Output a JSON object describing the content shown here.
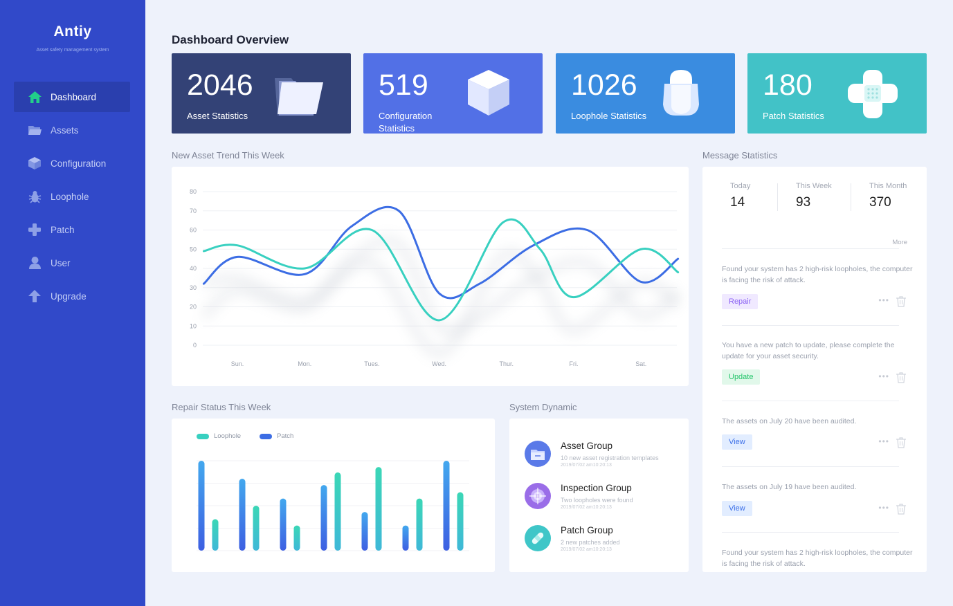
{
  "app": {
    "name": "Antiy",
    "subtitle": "Asset safety management system"
  },
  "sidebar": {
    "items": [
      {
        "label": "Dashboard",
        "icon": "home-icon",
        "active": true
      },
      {
        "label": "Assets",
        "icon": "folder-icon",
        "active": false
      },
      {
        "label": "Configuration",
        "icon": "cube-icon",
        "active": false
      },
      {
        "label": "Loophole",
        "icon": "bug-icon",
        "active": false
      },
      {
        "label": "Patch",
        "icon": "plus-icon",
        "active": false
      },
      {
        "label": "User",
        "icon": "user-icon",
        "active": false
      },
      {
        "label": "Upgrade",
        "icon": "arrow-up-icon",
        "active": false
      }
    ]
  },
  "page": {
    "title": "Dashboard Overview"
  },
  "stats": [
    {
      "value": "2046",
      "label": "Asset Statistics",
      "color": "#334276",
      "icon": "folder-icon"
    },
    {
      "value": "519",
      "label": "Configuration Statistics",
      "color": "#5270e6",
      "icon": "cube-icon"
    },
    {
      "value": "1026",
      "label": "Loophole Statistics",
      "color": "#3a8ce0",
      "icon": "shield-icon"
    },
    {
      "value": "180",
      "label": "Patch Statistics",
      "color": "#42c2c7",
      "icon": "bandage-icon"
    }
  ],
  "trend": {
    "title": "New Asset Trend This Week",
    "chart_data": {
      "type": "line",
      "categories": [
        "Sun.",
        "Mon.",
        "Tues.",
        "Wed.",
        "Thur.",
        "Fri.",
        "Sat."
      ],
      "yticks": [
        0,
        10,
        20,
        30,
        40,
        50,
        60,
        70,
        80
      ],
      "ylim": [
        0,
        80
      ],
      "grid": true,
      "series": [
        {
          "color": "#3c6de4",
          "x": [
            -0.5,
            0.0,
            1.0,
            1.7,
            2.4,
            3.0,
            3.6,
            4.4,
            5.2,
            6.0,
            6.55
          ],
          "values": [
            32,
            46,
            37,
            62,
            70,
            27,
            32,
            52,
            60,
            33,
            45
          ]
        },
        {
          "color": "#38d0c0",
          "x": [
            -0.5,
            0.0,
            1.0,
            2.0,
            3.0,
            3.95,
            4.5,
            5.0,
            6.0,
            6.55
          ],
          "values": [
            49,
            52,
            40,
            60,
            13,
            64,
            50,
            25,
            50,
            38
          ]
        }
      ]
    }
  },
  "repair": {
    "title": "Repair Status This Week",
    "legend": [
      {
        "name": "Loophole",
        "color": "#38d0c0"
      },
      {
        "name": "Patch",
        "color": "#3c6de4"
      }
    ],
    "chart_data": {
      "type": "bar",
      "ylim": [
        0,
        100
      ],
      "series": [
        {
          "name": "Patch",
          "color": "#3c6de4",
          "values": [
            100,
            80,
            58,
            73,
            43,
            28,
            100
          ]
        },
        {
          "name": "Loophole",
          "color": "#38d0c0",
          "values": [
            35,
            50,
            28,
            87,
            93,
            58,
            65
          ]
        }
      ]
    }
  },
  "dynamic": {
    "title": "System Dynamic",
    "items": [
      {
        "title": "Asset Group",
        "desc": "10 new asset registration templates",
        "time": "2019/07/02 am10:20:13",
        "icon": "folder-icon",
        "color": "#5a7ae8"
      },
      {
        "title": "Inspection Group",
        "desc": "Two loopholes were found",
        "time": "2019/07/02 am10:20:13",
        "icon": "target-icon",
        "color": "#9a6de8"
      },
      {
        "title": "Patch Group",
        "desc": "2 new patches added",
        "time": "2019/07/02 am10:20:13",
        "icon": "bandage-icon",
        "color": "#3fc6c8"
      }
    ]
  },
  "messages": {
    "title": "Message Statistics",
    "counts": [
      {
        "label": "Today",
        "value": "14"
      },
      {
        "label": "This Week",
        "value": "93"
      },
      {
        "label": "This Month",
        "value": "370"
      }
    ],
    "more": "More",
    "list": [
      {
        "text": "Found your system has 2 high-risk loopholes, the computer is facing the risk of attack.",
        "action": "Repair"
      },
      {
        "text": "You have a new patch to update, please complete the update for your asset security.",
        "action": "Update"
      },
      {
        "text": "The assets on July 20 have been audited.",
        "action": "View"
      },
      {
        "text": "The assets on July 19 have been audited.",
        "action": "View"
      },
      {
        "text": "Found your system has 2 high-risk loopholes, the computer is facing the risk of attack.",
        "action": ""
      }
    ]
  }
}
